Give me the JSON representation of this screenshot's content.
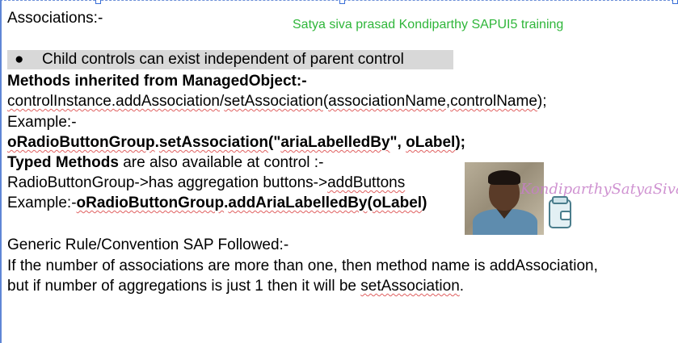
{
  "title": "Associations:-",
  "trainer_label": "Satya siva prasad Kondiparthy SAPUI5 training",
  "bullet_text": "Child controls can exist independent of parent control",
  "methods_heading": "Methods inherited from ManagedObject:-",
  "control_instance": {
    "prefix": "controlInstance.",
    "add": "addAssociation",
    "sep": "/",
    "set": "setAssociation",
    "args_open": "(",
    "arg1": "associationName",
    "comma": ",",
    "arg2": "controlName",
    "args_close": ");"
  },
  "example_label": "Example:-",
  "example_code": {
    "obj": "oRadioButtonGroup",
    "dot": ".",
    "method": "setAssociation",
    "open": "(\"",
    "arg1": "ariaLabelledBy",
    "middle": "\", ",
    "arg2": "oLabel",
    "close": ");"
  },
  "typed": {
    "bold": "Typed Methods",
    "rest": " are also available at control :-"
  },
  "radio_line": {
    "a": "RadioButtonGroup->has aggregation buttons->",
    "b": "addButtons"
  },
  "example2": {
    "label": "Example:-",
    "obj": "oRadioButtonGroup",
    "dot": ".",
    "method": "addAriaLabelledBy",
    "open": "(",
    "arg": "oLabel",
    "close": ")"
  },
  "generic_rule": "Generic Rule/Convention SAP Followed:-",
  "rule_line1": "If the number of associations are more than one, then method name is addAssociation,",
  "rule_line2": {
    "a": "but if number of aggregations is just 1 then it will be ",
    "b": "setAssociation",
    "c": "."
  },
  "watermark": "KondiparthySatyaSivaPr",
  "colors": {
    "trainer_green": "#2fb63a",
    "highlight_gray": "#d8d8d8",
    "watermark_pink": "#c77fc9"
  }
}
